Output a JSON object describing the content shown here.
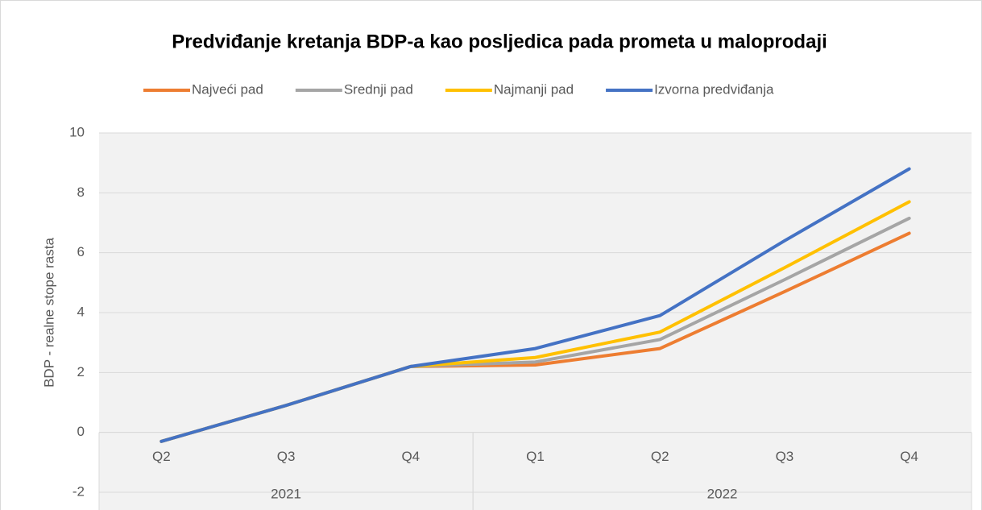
{
  "chart_data": {
    "type": "line",
    "title": "Predviđanje kretanja BDP-a kao posljedica pada prometa u maloprodaji",
    "y_label": "BDP - realne stope rasta",
    "groups": [
      {
        "label": "2021",
        "categories": [
          "Q2",
          "Q3",
          "Q4"
        ]
      },
      {
        "label": "2022",
        "categories": [
          "Q1",
          "Q2",
          "Q3",
          "Q4"
        ]
      }
    ],
    "series": [
      {
        "name": "Najveći pad",
        "color": "#ed7d31",
        "values": [
          -0.3,
          0.9,
          2.2,
          2.25,
          2.8,
          4.7,
          6.65
        ]
      },
      {
        "name": "Srednji pad",
        "color": "#a5a5a5",
        "values": [
          -0.3,
          0.9,
          2.2,
          2.35,
          3.1,
          5.1,
          7.15
        ]
      },
      {
        "name": "Najmanji pad",
        "color": "#ffc000",
        "values": [
          -0.3,
          0.9,
          2.2,
          2.5,
          3.35,
          5.5,
          7.7
        ]
      },
      {
        "name": "Izvorna predviđanja",
        "color": "#4472c4",
        "values": [
          -0.3,
          0.9,
          2.2,
          2.8,
          3.9,
          6.4,
          8.8
        ]
      }
    ],
    "ylim": [
      -2,
      10
    ],
    "yticks": [
      -2,
      0,
      2,
      4,
      6,
      8,
      10
    ],
    "grid": true,
    "legend": "top"
  }
}
